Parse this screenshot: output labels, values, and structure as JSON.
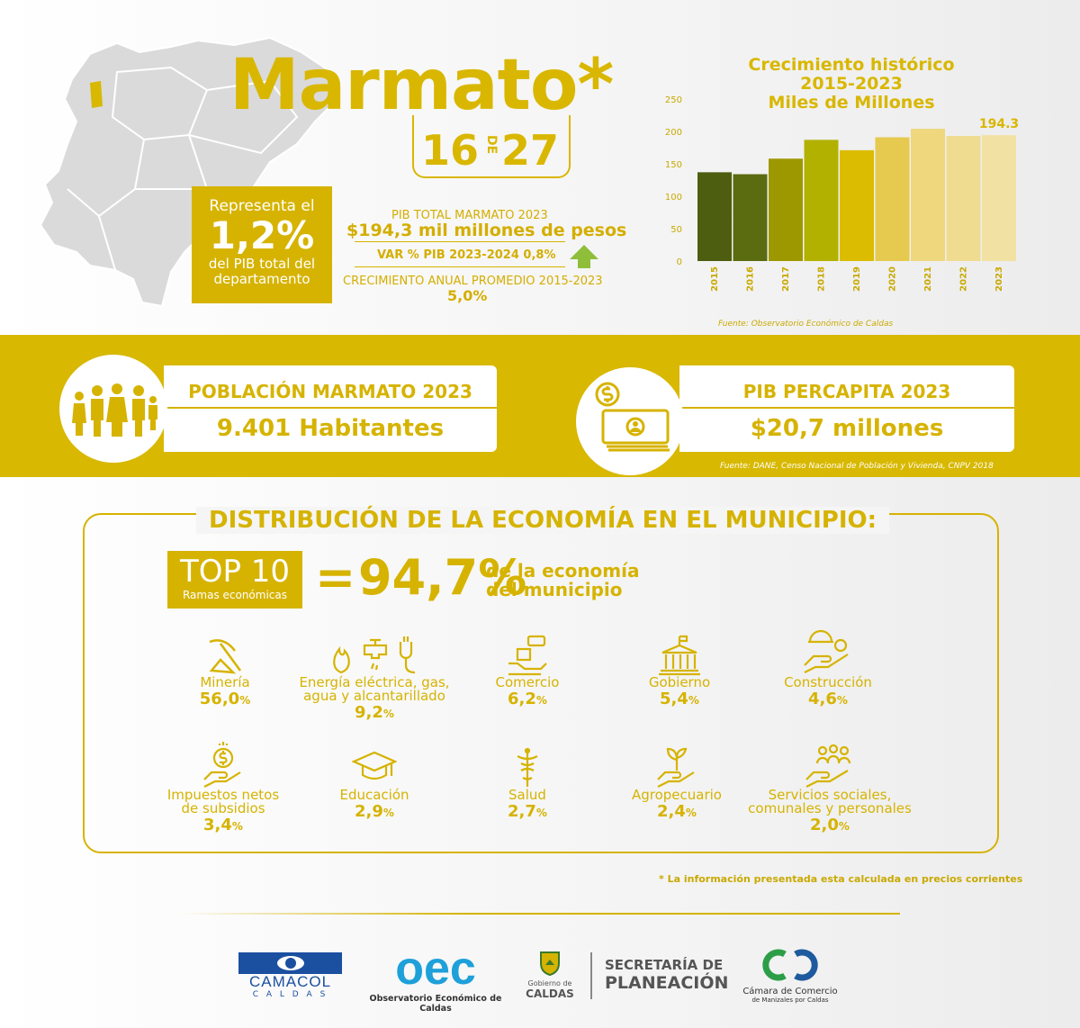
{
  "header": {
    "title": "Marmato*",
    "rank_position": "16",
    "rank_connector": "DE",
    "rank_total": "27"
  },
  "share": {
    "line1": "Representa el",
    "value": "1,2%",
    "line3a": "del PIB total del",
    "line3b": "departamento"
  },
  "pib": {
    "label": "PIB TOTAL MARMATO 2023",
    "value": "$194,3 mil millones de pesos",
    "var_label": "VAR % PIB 2023-2024  0,8%",
    "growth_label": "CRECIMIENTO ANUAL PROMEDIO 2015-2023",
    "growth_value": "5,0%"
  },
  "chart_data": {
    "type": "bar",
    "title_lines": [
      "Crecimiento histórico",
      "2015-2023",
      "Miles de Millones"
    ],
    "categories": [
      "2015",
      "2016",
      "2017",
      "2018",
      "2019",
      "2020",
      "2021",
      "2022",
      "2023"
    ],
    "values": [
      137,
      134,
      158,
      187,
      171,
      191,
      204,
      193,
      194.3
    ],
    "colors": [
      "#4d5e10",
      "#5a6b10",
      "#9e9800",
      "#b2b100",
      "#dcbc00",
      "#e6c94f",
      "#eed77d",
      "#efdc90",
      "#f1e2a4"
    ],
    "ylim": [
      0,
      250
    ],
    "yticks": [
      "0",
      "50",
      "100",
      "150",
      "200",
      "250"
    ],
    "last_label": "194.3",
    "source": "Fuente: Observatorio Económico de Caldas"
  },
  "band": {
    "population_title": "POBLACIÓN MARMATO 2023",
    "population_value": "9.401 Habitantes",
    "percapita_title": "PIB PERCAPITA 2023",
    "percapita_value": "$20,7 millones",
    "source": "Fuente: DANE, Censo Nacional de Población y Vivienda, CNPV 2018"
  },
  "distribution": {
    "title": "DISTRIBUCIÓN DE LA ECONOMÍA EN EL MUNICIPIO:",
    "top_label": "TOP 10",
    "top_sub": "Ramas económicas",
    "equals": "=",
    "top_value": "94,7%",
    "top_text1": "de la economía",
    "top_text2": "del municipio",
    "sectors": [
      {
        "name1": "Minería",
        "name2": "",
        "value": "56,0",
        "icon": "pickaxe-icon"
      },
      {
        "name1": "Energía eléctrica, gas,",
        "name2": "agua y alcantarillado",
        "value": "9,2",
        "icon": "utilities-icon"
      },
      {
        "name1": "Comercio",
        "name2": "",
        "value": "6,2",
        "icon": "commerce-icon"
      },
      {
        "name1": "Gobierno",
        "name2": "",
        "value": "5,4",
        "icon": "government-icon"
      },
      {
        "name1": "Construcción",
        "name2": "",
        "value": "4,6",
        "icon": "construction-icon"
      },
      {
        "name1": "Impuestos netos",
        "name2": "de subsidios",
        "value": "3,4",
        "icon": "taxes-icon"
      },
      {
        "name1": "Educación",
        "name2": "",
        "value": "2,9",
        "icon": "education-icon"
      },
      {
        "name1": "Salud",
        "name2": "",
        "value": "2,7",
        "icon": "health-icon"
      },
      {
        "name1": "Agropecuario",
        "name2": "",
        "value": "2,4",
        "icon": "agriculture-icon"
      },
      {
        "name1": "Servicios sociales,",
        "name2": "comunales y personales",
        "value": "2,0",
        "icon": "social-services-icon"
      }
    ],
    "pct_sign": "%"
  },
  "note": "* La información presentada esta calculada en precios corrientes",
  "footer": {
    "camacol": "CAMACOL",
    "camacol_sub": "C A L D A S",
    "oec_logo": "oec",
    "oec_name": "Observatorio Económico de Caldas",
    "gob1": "Gobierno de",
    "gob2": "CALDAS",
    "sec1": "SECRETARÍA DE",
    "sec2": "PLANEACIÓN",
    "cc1": "Cámara de Comercio",
    "cc2": "de Manizales por Caldas"
  }
}
